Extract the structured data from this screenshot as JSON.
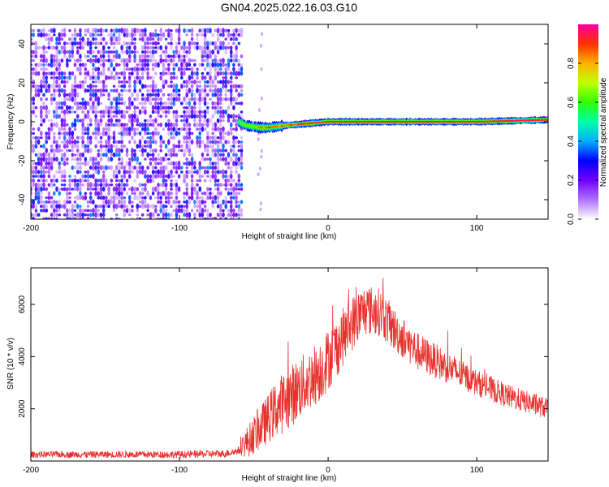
{
  "title": "GN04.2025.022.16.03.G10",
  "colors": {
    "snr_line": "#e8302c",
    "frame": "#000000",
    "background": "#ffffff"
  },
  "chart_data": [
    {
      "type": "heatmap",
      "name": "spectrogram",
      "xlabel": "Height of straight line (km)",
      "ylabel": "Frequency (Hz)",
      "xlim": [
        -200,
        148
      ],
      "ylim": [
        -50,
        50
      ],
      "xticks": [
        -200,
        -100,
        0,
        100
      ],
      "yticks": [
        -40,
        -20,
        0,
        20,
        40
      ],
      "colorbar": {
        "label": "Normalized spectral amplitude",
        "range": [
          0,
          1
        ],
        "ticks": [
          "0.0",
          "0.2",
          "0.4",
          "0.6",
          "0.8"
        ],
        "colormap": [
          "#ffffff",
          "#b070ff",
          "#7000ff",
          "#0000ff",
          "#00b0ff",
          "#00ffaa",
          "#30ff00",
          "#c0ff00",
          "#ffb000",
          "#ff3000",
          "#ff00a0"
        ]
      },
      "regions": [
        {
          "description_value": "noise",
          "x_range": [
            -200,
            -57
          ],
          "y_range": [
            -50,
            48
          ],
          "amplitude_range": [
            0.0,
            0.4
          ]
        },
        {
          "description_value": "signal_track",
          "x_range": [
            -60,
            148
          ],
          "freq_start": [
            -60,
            0
          ],
          "freq_path": [
            [
              -60,
              0
            ],
            [
              -55,
              -2
            ],
            [
              -45,
              -3
            ],
            [
              -40,
              -3
            ],
            [
              -30,
              -2
            ],
            [
              -15,
              -1
            ],
            [
              0,
              0
            ],
            [
              50,
              0
            ],
            [
              100,
              0
            ],
            [
              148,
              1
            ]
          ],
          "amplitude": 1.0
        }
      ]
    },
    {
      "type": "line",
      "name": "snr",
      "xlabel": "Height of straight line (km)",
      "ylabel": "SNR (10 * v/v)",
      "xlim": [
        -200,
        148
      ],
      "ylim": [
        0,
        7400
      ],
      "xticks": [
        -200,
        -100,
        0,
        100
      ],
      "yticks": [
        2000,
        4000,
        6000
      ],
      "envelope": [
        [
          -200,
          250
        ],
        [
          -150,
          250
        ],
        [
          -100,
          250
        ],
        [
          -70,
          280
        ],
        [
          -60,
          400
        ],
        [
          -55,
          700
        ],
        [
          -45,
          1300
        ],
        [
          -35,
          2000
        ],
        [
          -25,
          2500
        ],
        [
          -15,
          3000
        ],
        [
          -5,
          3500
        ],
        [
          5,
          4300
        ],
        [
          15,
          5200
        ],
        [
          25,
          5800
        ],
        [
          35,
          5700
        ],
        [
          45,
          5000
        ],
        [
          60,
          4200
        ],
        [
          80,
          3600
        ],
        [
          100,
          3000
        ],
        [
          120,
          2500
        ],
        [
          148,
          2000
        ]
      ],
      "noise_amplitude": [
        [
          -200,
          120
        ],
        [
          -60,
          150
        ],
        [
          -55,
          600
        ],
        [
          -30,
          1200
        ],
        [
          0,
          1200
        ],
        [
          25,
          1000
        ],
        [
          50,
          800
        ],
        [
          100,
          500
        ],
        [
          148,
          400
        ]
      ]
    }
  ]
}
